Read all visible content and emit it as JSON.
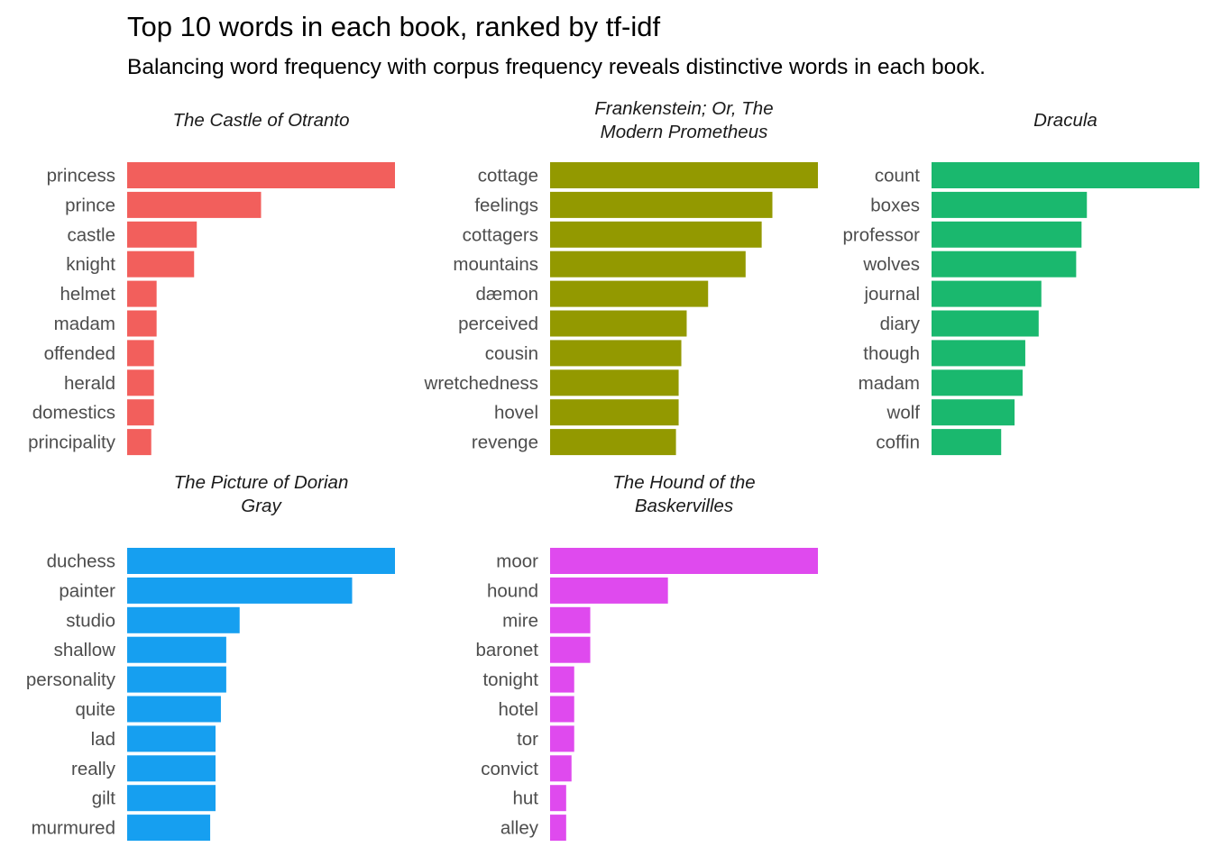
{
  "chart_data": {
    "type": "bar",
    "orientation": "horizontal",
    "title": "Top 10 words in each book, ranked by tf-idf",
    "subtitle": "Balancing word frequency with corpus frequency reveals distinctive words in each book.",
    "xlabel": "",
    "ylabel": "",
    "value_note": "tf-idf relative to each panel's top word (free x scales, no axis shown)",
    "grid": false,
    "legend": "none",
    "panels": [
      {
        "title_lines": [
          "The Castle of Otranto"
        ],
        "color": "#F25F5C",
        "categories": [
          "princess",
          "prince",
          "castle",
          "knight",
          "helmet",
          "madam",
          "offended",
          "herald",
          "domestics",
          "principality"
        ],
        "values": [
          1.0,
          0.5,
          0.26,
          0.25,
          0.11,
          0.11,
          0.1,
          0.1,
          0.1,
          0.09
        ]
      },
      {
        "title_lines": [
          "Frankenstein; Or, The",
          "Modern Prometheus"
        ],
        "color": "#939900",
        "categories": [
          "cottage",
          "feelings",
          "cottagers",
          "mountains",
          "dæmon",
          "perceived",
          "cousin",
          "wretchedness",
          "hovel",
          "revenge"
        ],
        "values": [
          1.0,
          0.83,
          0.79,
          0.73,
          0.59,
          0.51,
          0.49,
          0.48,
          0.48,
          0.47
        ]
      },
      {
        "title_lines": [
          "Dracula"
        ],
        "color": "#1AB86E",
        "categories": [
          "count",
          "boxes",
          "professor",
          "wolves",
          "journal",
          "diary",
          "though",
          "madam",
          "wolf",
          "coffin"
        ],
        "values": [
          1.0,
          0.58,
          0.56,
          0.54,
          0.41,
          0.4,
          0.35,
          0.34,
          0.31,
          0.26
        ]
      },
      {
        "title_lines": [
          "The Picture of Dorian",
          "Gray"
        ],
        "color": "#169FF0",
        "categories": [
          "duchess",
          "painter",
          "studio",
          "shallow",
          "personality",
          "quite",
          "lad",
          "really",
          "gilt",
          "murmured"
        ],
        "values": [
          1.0,
          0.84,
          0.42,
          0.37,
          0.37,
          0.35,
          0.33,
          0.33,
          0.33,
          0.31
        ]
      },
      {
        "title_lines": [
          "The Hound of the",
          "Baskervilles"
        ],
        "color": "#DF4AEE",
        "categories": [
          "moor",
          "hound",
          "mire",
          "baronet",
          "tonight",
          "hotel",
          "tor",
          "convict",
          "hut",
          "alley"
        ],
        "values": [
          1.0,
          0.44,
          0.15,
          0.15,
          0.09,
          0.09,
          0.09,
          0.08,
          0.06,
          0.06
        ]
      }
    ]
  }
}
